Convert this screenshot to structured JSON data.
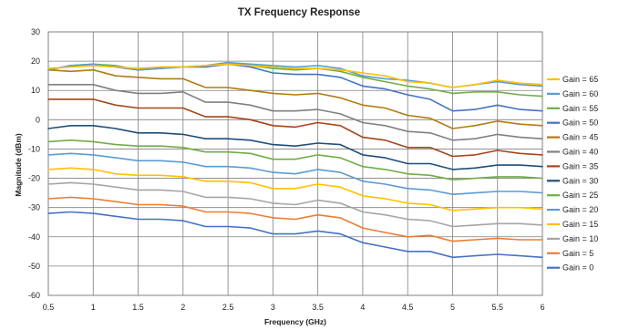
{
  "chart_data": {
    "type": "line",
    "title": "TX Frequency Response",
    "xlabel": "Frequency (GHz)",
    "ylabel": "Magnitude (dBm)",
    "xlim": [
      0.5,
      6
    ],
    "ylim": [
      -60,
      30
    ],
    "xticks": [
      "0.5",
      "1",
      "1.5",
      "2",
      "2.5",
      "3",
      "3.5",
      "4",
      "4.5",
      "5",
      "5.5",
      "6"
    ],
    "yticks": [
      "30",
      "20",
      "10",
      "0",
      "-10",
      "-20",
      "-30",
      "-40",
      "-50",
      "-60"
    ],
    "grid": true,
    "legend_position": "right",
    "x": [
      0.5,
      0.75,
      1.0,
      1.25,
      1.5,
      1.75,
      2.0,
      2.25,
      2.5,
      2.75,
      3.0,
      3.25,
      3.5,
      3.75,
      4.0,
      4.25,
      4.5,
      4.75,
      5.0,
      5.25,
      5.5,
      5.75,
      6.0
    ],
    "series": [
      {
        "name": "Gain = 65",
        "color": "#ffc000",
        "values": [
          17.5,
          18,
          18.5,
          18,
          17.5,
          18,
          18,
          18.5,
          19,
          18.5,
          18,
          17.5,
          17.5,
          17,
          16,
          15,
          13,
          12.5,
          11,
          12,
          13.5,
          12.5,
          12
        ]
      },
      {
        "name": "Gain = 60",
        "color": "#5b9bd5",
        "values": [
          17,
          18.5,
          19,
          18,
          17,
          17.5,
          18,
          18.5,
          19.5,
          19,
          18.5,
          18,
          18.5,
          17.5,
          15,
          14,
          13.5,
          12.5,
          11,
          12,
          13,
          12,
          11.5
        ]
      },
      {
        "name": "Gain = 55",
        "color": "#70ad47",
        "values": [
          17,
          18.5,
          19,
          18.5,
          17,
          18,
          18,
          18.5,
          19.5,
          18.5,
          17.5,
          17,
          17.5,
          16.5,
          14.5,
          13,
          11.5,
          10.5,
          9,
          9.5,
          9.5,
          8.5,
          8
        ]
      },
      {
        "name": "Gain = 50",
        "color": "#4472c4",
        "values": [
          17,
          18.5,
          18.5,
          18,
          17,
          17.5,
          18,
          18,
          19,
          18,
          16,
          15.5,
          15.5,
          14.5,
          11.5,
          10.5,
          8.5,
          7,
          3,
          3.5,
          5,
          3.5,
          3
        ]
      },
      {
        "name": "Gain = 45",
        "color": "#b07c12",
        "values": [
          17,
          16.5,
          17,
          15,
          14.5,
          14,
          14,
          11,
          11,
          10,
          9,
          8.5,
          9,
          7.5,
          5,
          4,
          1.5,
          0.5,
          -3,
          -2,
          -0.5,
          -1.5,
          -2
        ]
      },
      {
        "name": "Gain = 40",
        "color": "#808080",
        "values": [
          12,
          12,
          12,
          10,
          9,
          9,
          9.5,
          6,
          6,
          5,
          3,
          3,
          3.5,
          2,
          -1,
          -2,
          -4,
          -4.5,
          -7,
          -6.5,
          -5,
          -6,
          -6.5
        ]
      },
      {
        "name": "Gain = 35",
        "color": "#a5451a",
        "values": [
          7,
          7,
          7,
          5,
          4,
          4,
          4,
          1,
          1,
          0,
          -2,
          -2.5,
          -1,
          -2,
          -6,
          -7,
          -9.5,
          -9.5,
          -12.5,
          -12,
          -10.5,
          -11.5,
          -12
        ]
      },
      {
        "name": "Gain = 30",
        "color": "#1f4e79",
        "values": [
          -3,
          -2,
          -2,
          -3,
          -4.5,
          -4.5,
          -5,
          -6.5,
          -6.5,
          -7,
          -8.5,
          -9,
          -8,
          -8.5,
          -12,
          -13,
          -15,
          -15,
          -17,
          -16.5,
          -15.5,
          -15.5,
          -16
        ]
      },
      {
        "name": "Gain = 25",
        "color": "#70ad47",
        "values": [
          -7.5,
          -7,
          -7.5,
          -8.5,
          -9,
          -9,
          -9.5,
          -11,
          -11,
          -11.5,
          -13.5,
          -13.5,
          -12,
          -13,
          -16,
          -17,
          -18.5,
          -19,
          -20.5,
          -20,
          -19.5,
          -19.5,
          -20
        ]
      },
      {
        "name": "Gain = 20",
        "color": "#5b9bd5",
        "values": [
          -12,
          -11.5,
          -12,
          -13,
          -14,
          -14,
          -14.5,
          -16,
          -16,
          -16.5,
          -18,
          -18.5,
          -17,
          -18,
          -21,
          -22,
          -23.5,
          -24,
          -25.5,
          -25,
          -24.5,
          -24.5,
          -25
        ]
      },
      {
        "name": "Gain = 15",
        "color": "#ffc000",
        "values": [
          -17,
          -16.5,
          -17,
          -18.5,
          -19,
          -19,
          -19.5,
          -21,
          -21,
          -21.5,
          -23.5,
          -23.5,
          -22,
          -23,
          -26,
          -27,
          -28.5,
          -29,
          -31,
          -30.5,
          -30,
          -30,
          -30.5
        ]
      },
      {
        "name": "Gain = 10",
        "color": "#a5a5a5",
        "values": [
          -22,
          -21.5,
          -22,
          -23,
          -24,
          -24,
          -24.5,
          -26.5,
          -26.5,
          -27,
          -28.5,
          -29,
          -27.5,
          -28.5,
          -31.5,
          -32.5,
          -34,
          -34.5,
          -36.5,
          -36,
          -35.5,
          -35.5,
          -36
        ]
      },
      {
        "name": "Gain = 5",
        "color": "#ed7d31",
        "values": [
          -27,
          -26.5,
          -27,
          -28,
          -29,
          -29,
          -29.5,
          -31.5,
          -31.5,
          -32,
          -33.5,
          -34,
          -32.5,
          -33.5,
          -37,
          -38.5,
          -40,
          -39.5,
          -41.5,
          -41,
          -40.5,
          -41,
          -41
        ]
      },
      {
        "name": "Gain = 0",
        "color": "#4472c4",
        "values": [
          -32,
          -31.5,
          -32,
          -33,
          -34,
          -34,
          -34.5,
          -36.5,
          -36.5,
          -37,
          -39,
          -39,
          -38,
          -39,
          -42,
          -43.5,
          -45,
          -45,
          -47,
          -46.5,
          -46,
          -46.5,
          -47
        ]
      }
    ]
  }
}
